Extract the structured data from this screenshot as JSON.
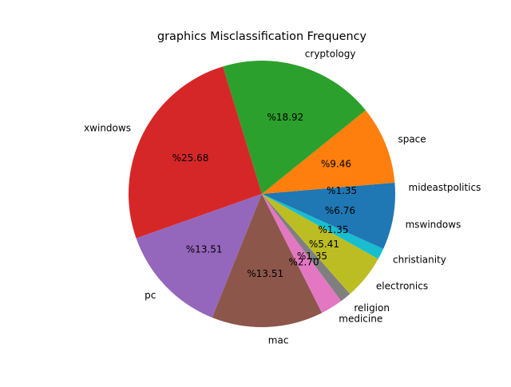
{
  "chart_data": {
    "type": "pie",
    "title": "graphics Misclassification Frequency",
    "start_angle_deg": 0,
    "direction": "counterclockwise",
    "label_format": "%{pct}",
    "slices": [
      {
        "label": "mideastpolitics",
        "value": 1.35,
        "pct_text": "%1.35",
        "color": "#1f77b4"
      },
      {
        "label": "space",
        "value": 9.46,
        "pct_text": "%9.46",
        "color": "#ff7f0e"
      },
      {
        "label": "cryptology",
        "value": 18.92,
        "pct_text": "%18.92",
        "color": "#2ca02c"
      },
      {
        "label": "xwindows",
        "value": 25.68,
        "pct_text": "%25.68",
        "color": "#d62728"
      },
      {
        "label": "pc",
        "value": 13.51,
        "pct_text": "%13.51",
        "color": "#9467bd"
      },
      {
        "label": "mac",
        "value": 13.51,
        "pct_text": "%13.51",
        "color": "#8c564b"
      },
      {
        "label": "medicine",
        "value": 2.7,
        "pct_text": "%2.70",
        "color": "#e377c2"
      },
      {
        "label": "religion",
        "value": 1.35,
        "pct_text": "%1.35",
        "color": "#7f7f7f"
      },
      {
        "label": "electronics",
        "value": 5.41,
        "pct_text": "%5.41",
        "color": "#bcbd22"
      },
      {
        "label": "christianity",
        "value": 1.35,
        "pct_text": "%1.35",
        "color": "#17becf"
      },
      {
        "label": "mswindows",
        "value": 6.76,
        "pct_text": "%6.76",
        "color": "#1f77b4"
      }
    ]
  }
}
